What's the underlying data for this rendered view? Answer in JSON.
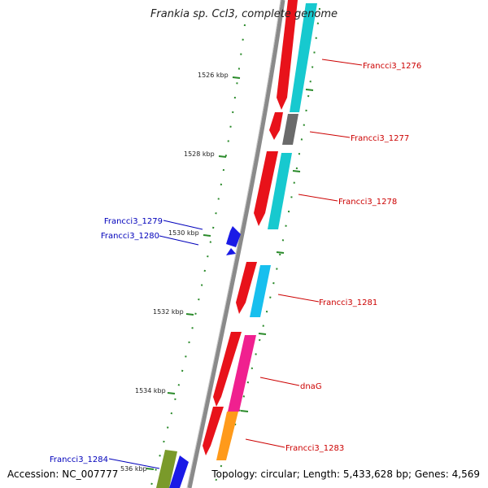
{
  "title": "Frankia sp. CcI3, complete genome",
  "footer": {
    "accession": "Accession: NC_007777",
    "summary": "Topology: circular; Length: 5,433,628 bp; Genes: 4,569"
  },
  "colors": {
    "backbone": "#8a8a8a",
    "tick": "#2a8a2a",
    "cds_forward": "#e8121a",
    "label_right": "#cc0000",
    "label_left": "#0000bb"
  },
  "ticks": [
    "1526 kbp",
    "1528 kbp",
    "1530 kbp",
    "1532 kbp",
    "1534 kbp",
    "536 kbp"
  ],
  "genes_right": [
    {
      "name": "Francci3_1276",
      "color": "#17c9cf"
    },
    {
      "name": "Francci3_1277",
      "color": "#6a6a6a"
    },
    {
      "name": "Francci3_1278",
      "color": "#17c9cf"
    },
    {
      "name": "Francci3_1281",
      "color": "#18bfee"
    },
    {
      "name": "dnaG",
      "color": "#f0208f"
    },
    {
      "name": "Francci3_1283",
      "color": "#ff9a1a"
    }
  ],
  "genes_left": [
    {
      "name": "Francci3_1279",
      "color": "#1a1ae6"
    },
    {
      "name": "Francci3_1280",
      "color": "#1a1ae6"
    },
    {
      "name": "Francci3_1284",
      "color": "#7a9a2a"
    }
  ],
  "unlabeled_genes": [
    {
      "color": "#1a1ae6"
    }
  ]
}
